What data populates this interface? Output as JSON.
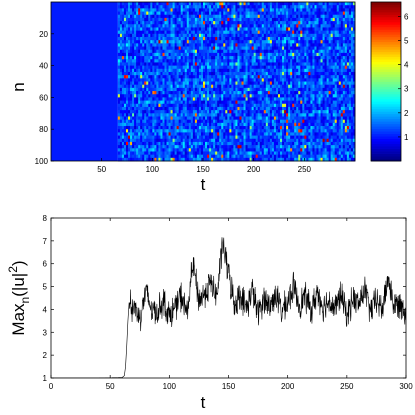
{
  "chart_data": [
    {
      "type": "heatmap",
      "xlabel": "t",
      "ylabel": "n",
      "xlim": [
        0,
        300
      ],
      "ylim": [
        100,
        0
      ],
      "x_ticks": [
        "50",
        "100",
        "150",
        "200",
        "250"
      ],
      "y_ticks": [
        "20",
        "40",
        "60",
        "80",
        "100"
      ],
      "colorbar": {
        "range": [
          0,
          6.6
        ],
        "ticks": [
          "1",
          "2",
          "3",
          "4",
          "5",
          "6"
        ],
        "colormap": "jet"
      },
      "description_values": {
        "uniform_region_t": [
          0,
          66
        ],
        "uniform_value": 1.0,
        "chaotic_region_t": [
          66,
          300
        ],
        "chaotic_typical_value": 1.3,
        "chaotic_peak_value": 6.3
      },
      "grid": false
    },
    {
      "type": "line",
      "xlabel": "t",
      "ylabel_main": "Max",
      "ylabel_sub": "n",
      "ylabel_arg": "(|u|",
      "ylabel_sup": "2",
      "ylabel_close": ")",
      "xlim": [
        0,
        300
      ],
      "ylim": [
        1,
        8
      ],
      "x_ticks": [
        "0",
        "50",
        "100",
        "150",
        "200",
        "250",
        "300"
      ],
      "y_ticks": [
        "1",
        "2",
        "3",
        "4",
        "5",
        "6",
        "7",
        "8"
      ],
      "series": [
        {
          "x": [
            0,
            20,
            40,
            60,
            62,
            63,
            64,
            65,
            66,
            67,
            68,
            70,
            75,
            80,
            85,
            90,
            95,
            100,
            105,
            110,
            115,
            120,
            125,
            130,
            135,
            140,
            145,
            150,
            155,
            160,
            165,
            170,
            175,
            180,
            185,
            190,
            195,
            200,
            205,
            210,
            215,
            220,
            225,
            230,
            235,
            240,
            245,
            250,
            255,
            260,
            265,
            270,
            275,
            280,
            285,
            290,
            295,
            300
          ],
          "y": [
            1.0,
            1.0,
            1.0,
            1.02,
            1.1,
            1.5,
            2.4,
            3.5,
            4.3,
            4.6,
            3.9,
            4.2,
            3.6,
            4.8,
            4.0,
            3.9,
            4.4,
            3.7,
            4.1,
            4.6,
            3.8,
            6.0,
            4.4,
            4.7,
            5.2,
            4.5,
            6.9,
            5.6,
            4.2,
            4.7,
            4.0,
            4.9,
            3.8,
            4.5,
            4.1,
            4.7,
            3.9,
            4.3,
            5.0,
            4.2,
            4.6,
            3.9,
            4.8,
            4.1,
            4.4,
            4.0,
            4.7,
            3.7,
            4.5,
            4.2,
            4.9,
            3.9,
            4.4,
            4.0,
            5.4,
            4.1,
            4.3,
            3.9
          ],
          "noise_amplitude": 0.55
        }
      ],
      "grid": false
    }
  ]
}
